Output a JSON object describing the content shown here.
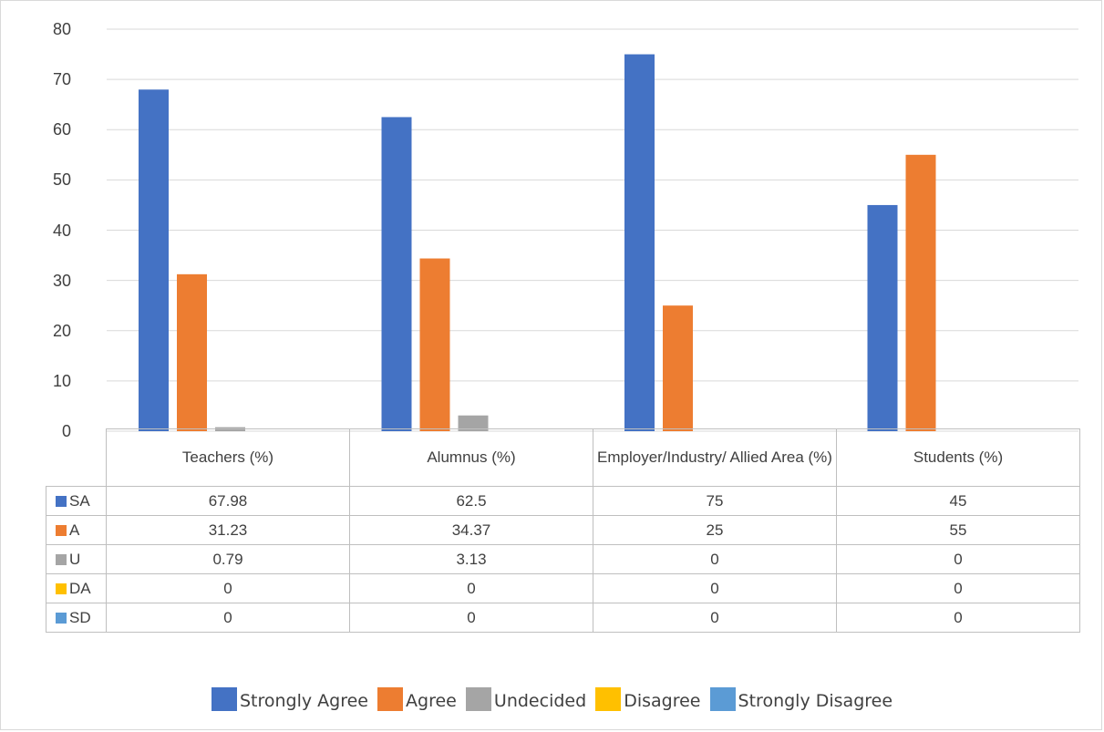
{
  "chart_data": {
    "type": "bar",
    "categories": [
      "Teachers (%)",
      "Alumnus (%)",
      "Employer/Industry/ Allied Area (%)",
      "Students (%)"
    ],
    "series": [
      {
        "name": "Strongly Agree",
        "short": "SA",
        "color": "#4472C4",
        "values": [
          67.98,
          62.5,
          75,
          45
        ],
        "labels": [
          "67.98",
          "62.5",
          "75",
          "45"
        ]
      },
      {
        "name": "Agree",
        "short": "A",
        "color": "#ED7D31",
        "values": [
          31.23,
          34.37,
          25,
          55
        ],
        "labels": [
          "31.23",
          "34.37",
          "25",
          "55"
        ]
      },
      {
        "name": "Undecided",
        "short": "U",
        "color": "#A5A5A5",
        "values": [
          0.79,
          3.13,
          0,
          0
        ],
        "labels": [
          "0.79",
          "3.13",
          "0",
          "0"
        ]
      },
      {
        "name": "Disagree",
        "short": "DA",
        "color": "#FFC000",
        "values": [
          0,
          0,
          0,
          0
        ],
        "labels": [
          "0",
          "0",
          "0",
          "0"
        ]
      },
      {
        "name": "Strongly Disagree",
        "short": "SD",
        "color": "#5B9BD5",
        "values": [
          0,
          0,
          0,
          0
        ],
        "labels": [
          "0",
          "0",
          "0",
          "0"
        ]
      }
    ],
    "yticks": [
      "0",
      "10",
      "20",
      "30",
      "40",
      "50",
      "60",
      "70",
      "80"
    ],
    "ylim": [
      0,
      80
    ],
    "grid": true,
    "legend_position": "bottom",
    "data_table": true
  }
}
